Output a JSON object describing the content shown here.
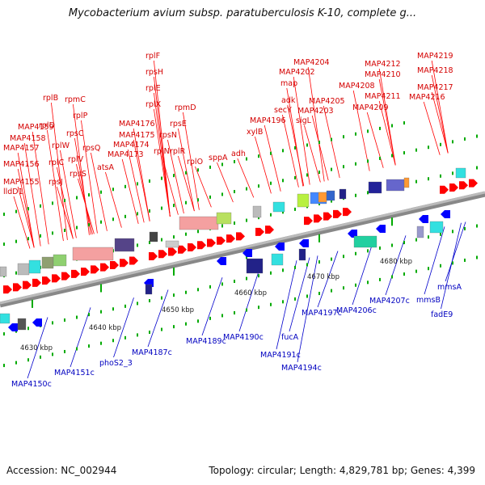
{
  "title": "Mycobacterium avium subsp. paratuberculosis K-10, complete g...",
  "footer": {
    "accession": "Accession: NC_002944",
    "summary": "Topology: circular; Length: 4,829,781 bp; Genes: 4,399"
  },
  "colors": {
    "forward": "#ff0000",
    "reverse": "#0000ff",
    "backbone": "#a0a0a0",
    "dots": "#00aa00"
  },
  "ticks": [
    "4630 kbp",
    "4640 kbp",
    "4650 kbp",
    "4660 kbp",
    "4670 kbp",
    "4680 kbp"
  ],
  "forward_labels": [
    "rplF",
    "rpsH",
    "rplE",
    "rplX",
    "rplN",
    "rpsN",
    "rpsE",
    "rpmD",
    "rplR",
    "rplO",
    "rplB",
    "rplD",
    "rplW",
    "rpsC",
    "rpmC",
    "rplP",
    "rplV",
    "rpsQ",
    "rplC",
    "rpsS",
    "rpsJ",
    "atsA",
    "MAP4159",
    "MAP4158",
    "MAP4157",
    "MAP4156",
    "MAP4155",
    "lldD1",
    "MAP4176",
    "MAP4175",
    "MAP4174",
    "MAP4173",
    "sppA",
    "adh",
    "xylB",
    "MAP4196",
    "secY",
    "adk",
    "map",
    "MAP4202",
    "MAP4204",
    "sigL",
    "MAP4203",
    "MAP4205",
    "MAP4208",
    "MAP4209",
    "MAP4210",
    "MAP4211",
    "MAP4212",
    "MAP4219",
    "MAP4218",
    "MAP4217",
    "MAP4216"
  ],
  "reverse_labels": [
    "MAP4150c",
    "MAP4151c",
    "phoS2_3",
    "MAP4187c",
    "MAP4189c",
    "MAP4190c",
    "fucA",
    "MAP4191c",
    "MAP4194c",
    "MAP4197c",
    "MAP4206c",
    "MAP4207c",
    "mmsB",
    "fadE9",
    "mmsA"
  ]
}
